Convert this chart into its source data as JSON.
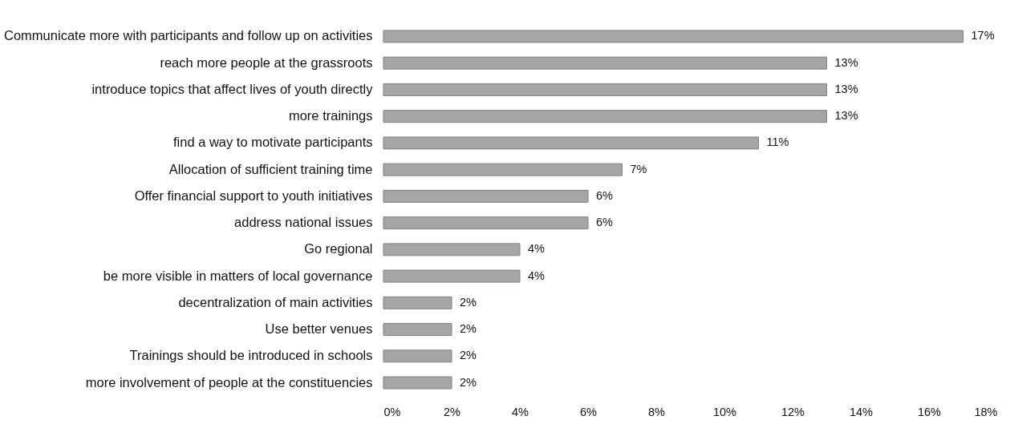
{
  "chart_data": {
    "type": "bar",
    "orientation": "horizontal",
    "categories": [
      "Communicate more with participants and follow up on activities",
      "reach more people at the grassroots",
      "introduce topics that affect lives of youth directly",
      "more trainings",
      "find a way to motivate participants",
      "Allocation of sufficient training time",
      "Offer financial support to youth initiatives",
      "address national issues",
      "Go regional",
      "be more visible in matters of local governance",
      "decentralization of main activities",
      "Use better venues",
      "Trainings should be introduced in schools",
      "more involvement of people at the constituencies"
    ],
    "values": [
      17,
      13,
      13,
      13,
      11,
      7,
      6,
      6,
      4,
      4,
      2,
      2,
      2,
      2
    ],
    "value_labels": [
      "17%",
      "13%",
      "13%",
      "13%",
      "11%",
      "7%",
      "6%",
      "6%",
      "4%",
      "4%",
      "2%",
      "2%",
      "2%",
      "2%"
    ],
    "color": "#a6a6a6",
    "xlim": [
      0,
      18
    ],
    "xticks": [
      {
        "value": 0,
        "label": "0%"
      },
      {
        "value": 2,
        "label": "2%"
      },
      {
        "value": 4,
        "label": "4%"
      },
      {
        "value": 6,
        "label": "6%"
      },
      {
        "value": 8,
        "label": "8%"
      },
      {
        "value": 10,
        "label": "10%"
      },
      {
        "value": 12,
        "label": "12%"
      },
      {
        "value": 14,
        "label": "14%"
      },
      {
        "value": 16,
        "label": "16%"
      },
      {
        "value": 18,
        "label": "18%"
      }
    ],
    "grid": false
  }
}
